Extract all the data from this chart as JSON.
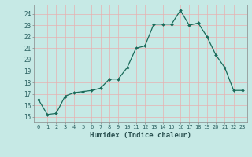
{
  "x": [
    0,
    1,
    2,
    3,
    4,
    5,
    6,
    7,
    8,
    9,
    10,
    11,
    12,
    13,
    14,
    15,
    16,
    17,
    18,
    19,
    20,
    21,
    22,
    23
  ],
  "y": [
    16.5,
    15.2,
    15.3,
    16.8,
    17.1,
    17.2,
    17.3,
    17.5,
    18.3,
    18.3,
    19.3,
    21.0,
    21.2,
    23.1,
    23.1,
    23.1,
    24.3,
    23.0,
    23.2,
    22.0,
    20.4,
    19.3,
    17.3,
    17.3
  ],
  "xlabel": "Humidex (Indice chaleur)",
  "ylim": [
    14.5,
    24.8
  ],
  "xlim": [
    -0.5,
    23.5
  ],
  "bg_color": "#c6e9e5",
  "grid_color": "#f0f0f0",
  "line_color": "#1a6b5a",
  "marker_color": "#1a6b5a",
  "tick_label_color": "#2a6060",
  "xlabel_color": "#2a5050",
  "yticks": [
    15,
    16,
    17,
    18,
    19,
    20,
    21,
    22,
    23,
    24
  ],
  "xticks": [
    0,
    1,
    2,
    3,
    4,
    5,
    6,
    7,
    8,
    9,
    10,
    11,
    12,
    13,
    14,
    15,
    16,
    17,
    18,
    19,
    20,
    21,
    22,
    23
  ]
}
